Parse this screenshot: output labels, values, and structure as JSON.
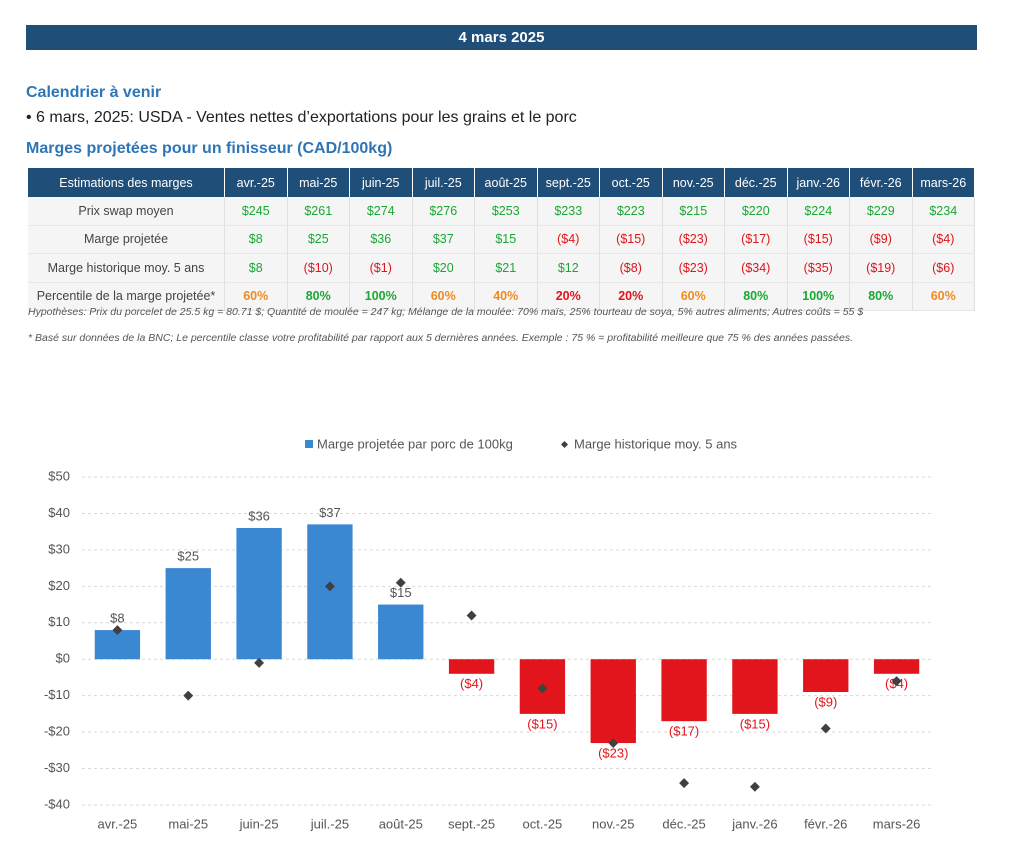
{
  "header": {
    "date": "4 mars 2025"
  },
  "calendar": {
    "title": "Calendrier à venir",
    "items": [
      "6 mars, 2025: USDA - Ventes nettes d’exportations pour les grains et le porc"
    ]
  },
  "table": {
    "title": "Marges projetées pour un finisseur (CAD/100kg)",
    "columns": [
      "Estimations des marges",
      "avr.-25",
      "mai-25",
      "juin-25",
      "juil.-25",
      "août-25",
      "sept.-25",
      "oct.-25",
      "nov.-25",
      "déc.-25",
      "janv.-26",
      "févr.-26",
      "mars-26"
    ],
    "rows": [
      [
        "Prix swap moyen",
        "$245",
        "$261",
        "$274",
        "$276",
        "$253",
        "$233",
        "$223",
        "$215",
        "$220",
        "$224",
        "$229",
        "$234"
      ],
      [
        "Marge projetée",
        "$8",
        "$25",
        "$36",
        "$37",
        "$15",
        "($4)",
        "($15)",
        "($23)",
        "($17)",
        "($15)",
        "($9)",
        "($4)"
      ],
      [
        "Marge historique moy. 5 ans",
        "$8",
        "($10)",
        "($1)",
        "$20",
        "$21",
        "$12",
        "($8)",
        "($23)",
        "($34)",
        "($35)",
        "($19)",
        "($6)"
      ],
      [
        "Percentile de la marge projetée*",
        "60%",
        "80%",
        "100%",
        "60%",
        "40%",
        "20%",
        "20%",
        "60%",
        "80%",
        "100%",
        "80%",
        "60%"
      ]
    ],
    "notes": [
      "Hypothèses: Prix du porcelet de 25.5 kg = 80.71 $; Quantité de moulée = 247 kg; Mélange de la moulée: 70% maïs, 25% tourteau de soya, 5% autres aliments; Autres coûts = 55 $",
      "* Basé sur données de la BNC; Le percentile classe votre profitabilité par rapport aux 5 dernières années. Exemple : 75 % = profitabilité meilleure que 75 % des années passées."
    ]
  },
  "chart_data": {
    "type": "bar",
    "categories": [
      "avr.-25",
      "mai-25",
      "juin-25",
      "juil.-25",
      "août-25",
      "sept.-25",
      "oct.-25",
      "nov.-25",
      "déc.-25",
      "janv.-26",
      "févr.-26",
      "mars-26"
    ],
    "series": [
      {
        "name": "Marge projetée par porc de 100kg",
        "type": "bar",
        "color": "#3a87d2",
        "negative_color": "#e2151c",
        "values": [
          8,
          25,
          36,
          37,
          15,
          -4,
          -15,
          -23,
          -17,
          -15,
          -9,
          -4
        ],
        "value_labels": [
          "$8",
          "$25",
          "$36",
          "$37",
          "$15",
          "($4)",
          "($15)",
          "($23)",
          "($17)",
          "($15)",
          "($9)",
          "($4)"
        ]
      },
      {
        "name": "Marge historique moy. 5 ans",
        "type": "scatter",
        "color": "#404040",
        "values": [
          8,
          -10,
          -1,
          20,
          21,
          12,
          -8,
          -23,
          -34,
          -35,
          -19,
          -6
        ]
      }
    ],
    "ylim": [
      -40,
      50
    ],
    "yticks": [
      {
        "value": -40,
        "label": "-$40"
      },
      {
        "value": -30,
        "label": "-$30"
      },
      {
        "value": -20,
        "label": "-$20"
      },
      {
        "value": -10,
        "label": "-$10"
      },
      {
        "value": 0,
        "label": "$0"
      },
      {
        "value": 10,
        "label": "$10"
      },
      {
        "value": 20,
        "label": "$20"
      },
      {
        "value": 30,
        "label": "$30"
      },
      {
        "value": 40,
        "label": "$40"
      },
      {
        "value": 50,
        "label": "$50"
      }
    ],
    "grid": true,
    "legend": "top"
  }
}
